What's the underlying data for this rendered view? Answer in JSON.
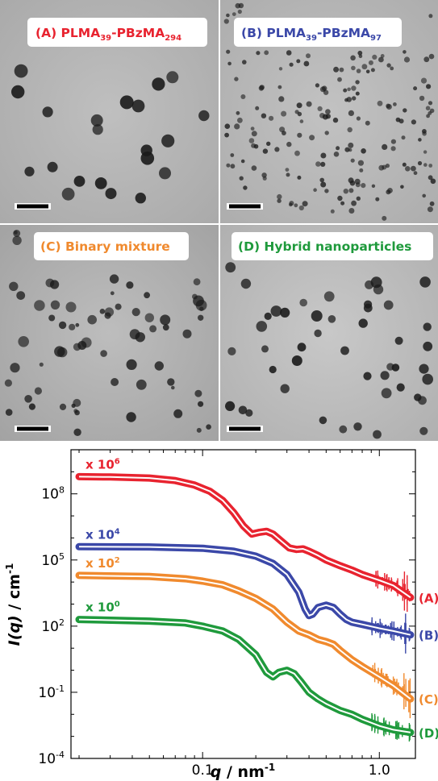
{
  "panels": [
    {
      "id": "A",
      "label_prefix": "(A) PLMA",
      "sub1": "39",
      "mid": "-PBzMA",
      "sub2": "294",
      "color": "#e8232f"
    },
    {
      "id": "B",
      "label_prefix": "(B) PLMA",
      "sub1": "39",
      "mid": "-PBzMA",
      "sub2": "97",
      "color": "#3b48a8"
    },
    {
      "id": "C",
      "label_prefix": "(C) Binary mixture",
      "sub1": "",
      "mid": "",
      "sub2": "",
      "color": "#f08a2e"
    },
    {
      "id": "D",
      "label_prefix": "(D) Hybrid nanoparticles",
      "sub1": "",
      "mid": "",
      "sub2": "",
      "color": "#1f9a3c"
    }
  ],
  "chart_data": {
    "type": "line",
    "xscale": "log",
    "yscale": "log",
    "xlim": [
      0.018,
      1.6
    ],
    "ylim": [
      0.0001,
      10000000000
    ],
    "xticks": [
      {
        "value": 0.1,
        "label": "0.1"
      },
      {
        "value": 1.0,
        "label": "1.0"
      }
    ],
    "yticks": [
      {
        "value": 0.0001,
        "base": "10",
        "exp": "-4"
      },
      {
        "value": 0.1,
        "base": "10",
        "exp": "-1"
      },
      {
        "value": 100,
        "base": "10",
        "exp": "2"
      },
      {
        "value": 100000,
        "base": "10",
        "exp": "5"
      },
      {
        "value": 100000000,
        "base": "10",
        "exp": "8"
      }
    ],
    "xlabel": {
      "var": "q",
      "unit": " / nm",
      "exp": "-1"
    },
    "ylabel": {
      "var": "I(q)",
      "unit": " / cm",
      "exp": "-1"
    },
    "series": [
      {
        "name": "(A)",
        "multiplier": {
          "base": "x 10",
          "exp": "6"
        },
        "color": "#e8232f",
        "x": [
          0.02,
          0.03,
          0.05,
          0.07,
          0.09,
          0.11,
          0.13,
          0.15,
          0.17,
          0.19,
          0.21,
          0.23,
          0.25,
          0.28,
          0.31,
          0.34,
          0.37,
          0.4,
          0.45,
          0.5,
          0.6,
          0.7,
          0.8,
          1.0,
          1.2,
          1.5
        ],
        "y": [
          600000000,
          580000000,
          520000000,
          400000000,
          250000000,
          130000000,
          50000000,
          14000000,
          3500000,
          1500000,
          1800000,
          2000000,
          1500000,
          700000,
          350000,
          300000,
          320000,
          250000,
          160000,
          100000,
          55000,
          35000,
          22000,
          12000,
          7000,
          2000
        ]
      },
      {
        "name": "(B)",
        "multiplier": {
          "base": "x 10",
          "exp": "4"
        },
        "color": "#3b48a8",
        "x": [
          0.02,
          0.05,
          0.1,
          0.15,
          0.2,
          0.25,
          0.3,
          0.35,
          0.38,
          0.4,
          0.42,
          0.45,
          0.5,
          0.55,
          0.6,
          0.65,
          0.7,
          0.8,
          1.0,
          1.2,
          1.5
        ],
        "y": [
          400000,
          390000,
          340000,
          250000,
          150000,
          70000,
          22000,
          3500,
          600,
          300,
          350,
          700,
          900,
          700,
          350,
          200,
          150,
          120,
          80,
          60,
          40
        ]
      },
      {
        "name": "(C)",
        "multiplier": {
          "base": "x 10",
          "exp": "2"
        },
        "color": "#f08a2e",
        "x": [
          0.02,
          0.05,
          0.08,
          0.1,
          0.13,
          0.16,
          0.2,
          0.25,
          0.3,
          0.35,
          0.4,
          0.45,
          0.5,
          0.55,
          0.6,
          0.7,
          0.8,
          1.0,
          1.2,
          1.5
        ],
        "y": [
          20000,
          18000,
          14000,
          11000,
          7500,
          4000,
          1800,
          600,
          150,
          60,
          40,
          25,
          20,
          15,
          8,
          3,
          1.5,
          0.5,
          0.2,
          0.05
        ]
      },
      {
        "name": "(D)",
        "multiplier": {
          "base": "x 10",
          "exp": "0"
        },
        "color": "#1f9a3c",
        "x": [
          0.02,
          0.05,
          0.08,
          0.1,
          0.13,
          0.16,
          0.2,
          0.23,
          0.25,
          0.27,
          0.3,
          0.33,
          0.36,
          0.4,
          0.45,
          0.5,
          0.6,
          0.7,
          0.8,
          1.0,
          1.2,
          1.5
        ],
        "y": [
          200,
          170,
          140,
          100,
          60,
          25,
          5,
          0.8,
          0.5,
          0.8,
          1.0,
          0.7,
          0.3,
          0.1,
          0.05,
          0.03,
          0.015,
          0.01,
          0.006,
          0.003,
          0.002,
          0.0015
        ]
      }
    ]
  }
}
